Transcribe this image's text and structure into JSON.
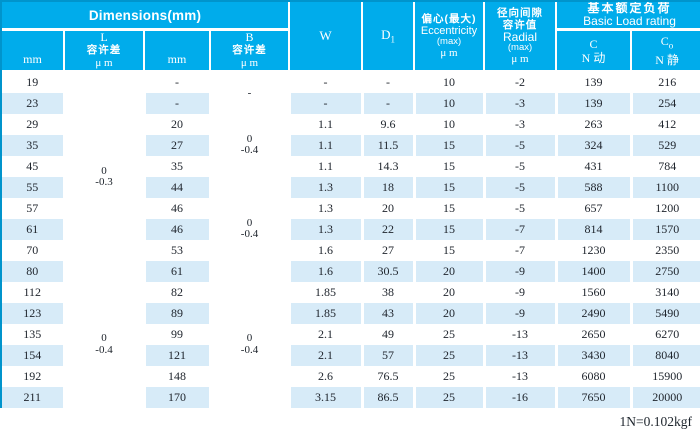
{
  "table": {
    "header": {
      "dimensions": "Dimensions(mm)",
      "mm_l": "mm",
      "l_tol_lines": [
        "L",
        "容许差",
        "μ m"
      ],
      "mm_b": "mm",
      "b_tol_lines": [
        "B",
        "容许差",
        "μ m"
      ],
      "w": "W",
      "d1": {
        "base": "D",
        "sub": "1"
      },
      "ecc_lines": [
        "偏心(最大)",
        "Eccentricity",
        "(max)",
        "μ m"
      ],
      "radial_lines": [
        "径向间隙",
        "容许值",
        "Radial",
        "(max)",
        "μ m"
      ],
      "load_lines": [
        "基本额定负荷",
        "Basic Load rating"
      ],
      "c_col": {
        "line1": "C",
        "line2": "N 动"
      },
      "co_col": {
        "line1_base": "C",
        "line1_sub": "o",
        "line2": "N 静"
      }
    },
    "rows": [
      {
        "l": "19",
        "b": "-",
        "w": "-",
        "d1": "-",
        "ecc": "10",
        "radial": "-2",
        "c": "139",
        "co": "216"
      },
      {
        "l": "23",
        "b": "-",
        "w": "-",
        "d1": "-",
        "ecc": "10",
        "radial": "-3",
        "c": "139",
        "co": "254"
      },
      {
        "l": "29",
        "b": "20",
        "w": "1.1",
        "d1": "9.6",
        "ecc": "10",
        "radial": "-3",
        "c": "263",
        "co": "412"
      },
      {
        "l": "35",
        "b": "27",
        "w": "1.1",
        "d1": "11.5",
        "ecc": "15",
        "radial": "-5",
        "c": "324",
        "co": "529"
      },
      {
        "l": "45",
        "b": "35",
        "w": "1.1",
        "d1": "14.3",
        "ecc": "15",
        "radial": "-5",
        "c": "431",
        "co": "784"
      },
      {
        "l": "55",
        "b": "44",
        "w": "1.3",
        "d1": "18",
        "ecc": "15",
        "radial": "-5",
        "c": "588",
        "co": "1100"
      },
      {
        "l": "57",
        "b": "46",
        "w": "1.3",
        "d1": "20",
        "ecc": "15",
        "radial": "-5",
        "c": "657",
        "co": "1200"
      },
      {
        "l": "61",
        "b": "46",
        "w": "1.3",
        "d1": "22",
        "ecc": "15",
        "radial": "-7",
        "c": "814",
        "co": "1570"
      },
      {
        "l": "70",
        "b": "53",
        "w": "1.6",
        "d1": "27",
        "ecc": "15",
        "radial": "-7",
        "c": "1230",
        "co": "2350"
      },
      {
        "l": "80",
        "b": "61",
        "w": "1.6",
        "d1": "30.5",
        "ecc": "20",
        "radial": "-9",
        "c": "1400",
        "co": "2750"
      },
      {
        "l": "112",
        "b": "82",
        "w": "1.85",
        "d1": "38",
        "ecc": "20",
        "radial": "-9",
        "c": "1560",
        "co": "3140"
      },
      {
        "l": "123",
        "b": "89",
        "w": "1.85",
        "d1": "43",
        "ecc": "20",
        "radial": "-9",
        "c": "2490",
        "co": "5490"
      },
      {
        "l": "135",
        "b": "99",
        "w": "2.1",
        "d1": "49",
        "ecc": "25",
        "radial": "-13",
        "c": "2650",
        "co": "6270"
      },
      {
        "l": "154",
        "b": "121",
        "w": "2.1",
        "d1": "57",
        "ecc": "25",
        "radial": "-13",
        "c": "3430",
        "co": "8040"
      },
      {
        "l": "192",
        "b": "148",
        "w": "2.6",
        "d1": "76.5",
        "ecc": "25",
        "radial": "-13",
        "c": "6080",
        "co": "15900"
      },
      {
        "l": "211",
        "b": "170",
        "w": "3.15",
        "d1": "86.5",
        "ecc": "25",
        "radial": "-16",
        "c": "7650",
        "co": "20000"
      }
    ],
    "l_tol_merges": [
      {
        "start": 0,
        "span": 10,
        "lines": [
          "0",
          "-0.3"
        ]
      },
      {
        "start": 10,
        "span": 6,
        "lines": [
          "0",
          "-0.4"
        ]
      }
    ],
    "b_tol_merges": [
      {
        "start": 0,
        "span": 2,
        "lines": [
          "-"
        ]
      },
      {
        "start": 2,
        "span": 3,
        "lines": [
          "0",
          "-0.4"
        ]
      },
      {
        "start": 5,
        "span": 5,
        "lines": [
          "0",
          "-0.4"
        ]
      },
      {
        "start": 10,
        "span": 6,
        "lines": [
          "0",
          "-0.4"
        ]
      }
    ],
    "footer": {
      "note": "1N=0.102kgf"
    },
    "colors": {
      "header_bg": "#00aceb",
      "stripe": "#d7ebf8",
      "outer_border": "#0094cc",
      "body_text": "#20262e"
    }
  }
}
